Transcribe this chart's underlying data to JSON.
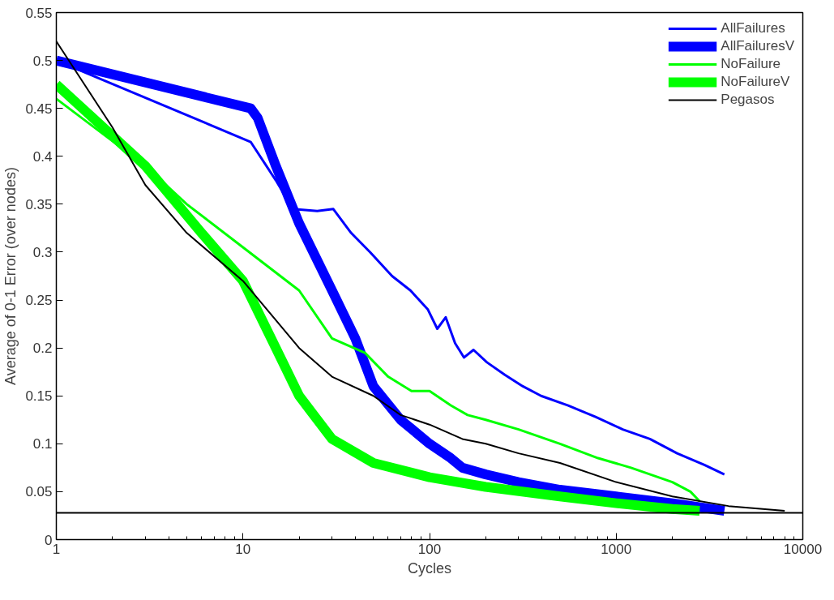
{
  "chart_data": {
    "type": "line",
    "xlabel": "Cycles",
    "ylabel": "Average of 0-1 Error (over nodes)",
    "log": "x",
    "xlim": [
      1,
      10000
    ],
    "xticks": [
      1,
      10,
      100,
      1000,
      10000
    ],
    "ylim": [
      0,
      0.55
    ],
    "yticks": [
      0,
      0.05,
      0.1,
      0.15,
      0.2,
      0.25,
      0.3,
      0.35,
      0.4,
      0.45,
      0.5,
      0.55
    ],
    "grid": false,
    "legend": "top right",
    "line_style": "solid",
    "series": [
      {
        "name": "AllFailures",
        "color": "#0000ff",
        "x": [
          1,
          11,
          15,
          18.5,
          25,
          30.5,
          38,
          48,
          63,
          79,
          98,
          110,
          122,
          137,
          153,
          172,
          203,
          253,
          316,
          396,
          553,
          775,
          1084,
          1516,
          2122,
          2969,
          3800
        ],
        "values": [
          0.5,
          0.415,
          0.375,
          0.345,
          0.343,
          0.345,
          0.32,
          0.3,
          0.275,
          0.26,
          0.24,
          0.22,
          0.232,
          0.205,
          0.19,
          0.198,
          0.185,
          0.172,
          0.16,
          0.15,
          0.14,
          0.128,
          0.115,
          0.105,
          0.09,
          0.078,
          0.068
        ]
      },
      {
        "name": "AllFailuresV",
        "color": "#0000ff",
        "x": [
          1,
          11,
          12,
          15,
          20,
          30,
          40,
          50,
          70,
          100,
          130,
          150,
          200,
          300,
          500,
          1000,
          2000,
          3800
        ],
        "values": [
          0.5,
          0.45,
          0.44,
          0.39,
          0.33,
          0.26,
          0.21,
          0.16,
          0.125,
          0.1,
          0.085,
          0.075,
          0.068,
          0.06,
          0.052,
          0.045,
          0.038,
          0.03
        ]
      },
      {
        "name": "NoFailure",
        "color": "#00ff00",
        "x": [
          1,
          3,
          5,
          10,
          20,
          30,
          45,
          60,
          80,
          100,
          130,
          160,
          200,
          300,
          500,
          800,
          1200,
          2000,
          2500,
          2800
        ],
        "values": [
          0.46,
          0.39,
          0.35,
          0.305,
          0.26,
          0.21,
          0.195,
          0.17,
          0.155,
          0.155,
          0.14,
          0.13,
          0.125,
          0.115,
          0.1,
          0.085,
          0.075,
          0.06,
          0.05,
          0.04
        ]
      },
      {
        "name": "NoFailureV",
        "color": "#00ff00",
        "x": [
          1,
          3,
          6,
          10,
          15,
          20,
          30,
          50,
          100,
          200,
          500,
          1000,
          2000,
          2800
        ],
        "values": [
          0.475,
          0.39,
          0.32,
          0.27,
          0.2,
          0.15,
          0.105,
          0.08,
          0.065,
          0.055,
          0.045,
          0.038,
          0.032,
          0.03
        ]
      },
      {
        "name": "Pegasos",
        "color": "#000000",
        "x": [
          1,
          2,
          3,
          5,
          10,
          20,
          30,
          50,
          70,
          100,
          150,
          200,
          300,
          500,
          1000,
          2000,
          4000,
          8000
        ],
        "values": [
          0.52,
          0.43,
          0.37,
          0.32,
          0.27,
          0.2,
          0.17,
          0.15,
          0.13,
          0.12,
          0.105,
          0.1,
          0.09,
          0.08,
          0.06,
          0.045,
          0.035,
          0.03
        ]
      },
      {
        "color": "#000000",
        "x": [
          1,
          10000
        ],
        "values": [
          0.028,
          0.028
        ]
      }
    ]
  }
}
